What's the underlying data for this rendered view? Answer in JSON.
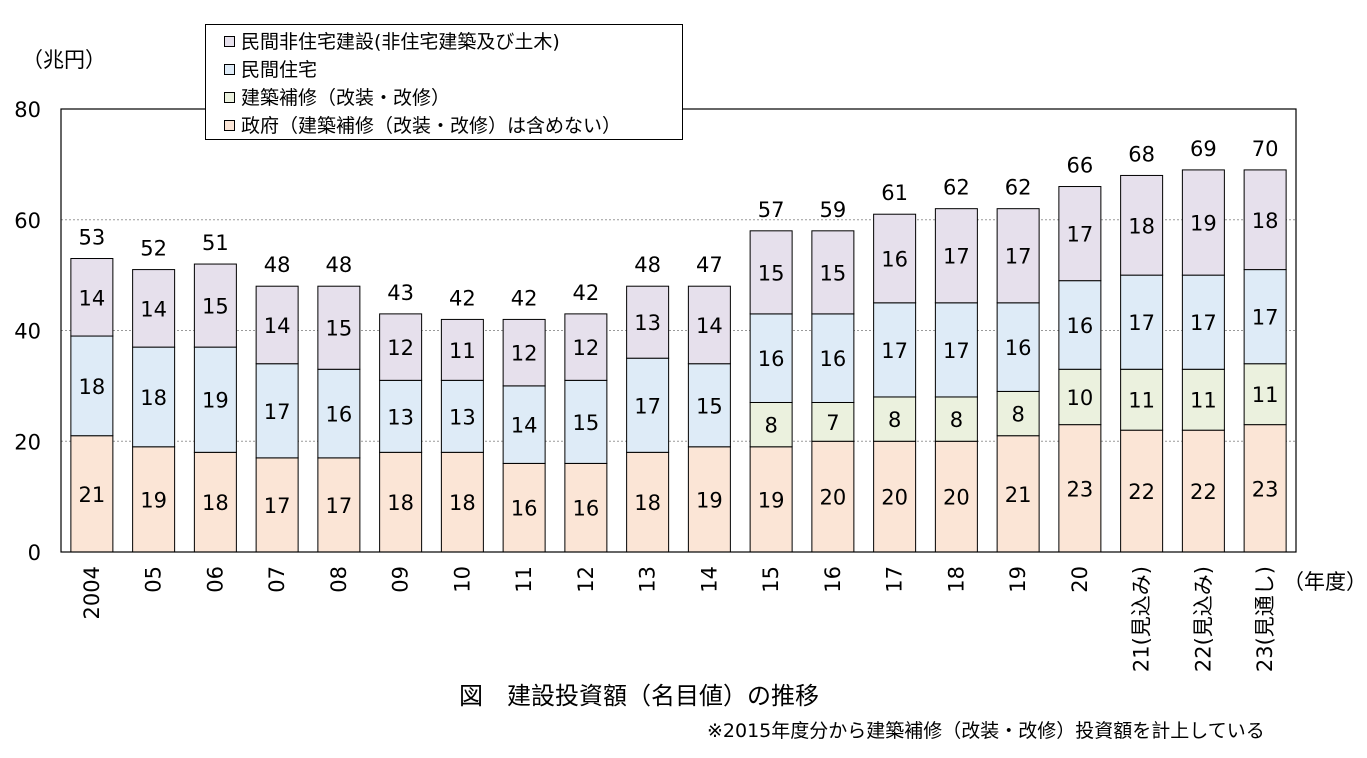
{
  "chart_data": {
    "type": "bar",
    "stacked": true,
    "title": "図　建設投資額（名目値）の推移",
    "note": "※2015年度分から建築補修（改装・改修）投資額を計上している",
    "ylabel": "（兆円）",
    "xlabel": "（年度）",
    "ylim": [
      0,
      80
    ],
    "yticks": [
      "0",
      "20",
      "40",
      "60",
      "80"
    ],
    "grid": true,
    "legend_position": "top-left",
    "categories": [
      "2004",
      "05",
      "06",
      "07",
      "08",
      "09",
      "10",
      "11",
      "12",
      "13",
      "14",
      "15",
      "16",
      "17",
      "18",
      "19",
      "20",
      "21(見込み)",
      "22(見込み)",
      "23(見通し)"
    ],
    "totals": [
      53,
      52,
      51,
      48,
      48,
      43,
      42,
      42,
      42,
      48,
      47,
      57,
      59,
      61,
      62,
      62,
      66,
      68,
      69,
      70
    ],
    "series": [
      {
        "name": "政府（建築補修（改装・改修）は含めない）",
        "color": "#fbe5d6",
        "values": [
          21,
          19,
          18,
          17,
          17,
          18,
          18,
          16,
          16,
          18,
          19,
          19,
          20,
          20,
          20,
          21,
          23,
          22,
          22,
          23
        ]
      },
      {
        "name": "建築補修（改装・改修）",
        "color": "#ebf1de",
        "values": [
          null,
          null,
          null,
          null,
          null,
          null,
          null,
          null,
          null,
          null,
          null,
          8,
          7,
          8,
          8,
          8,
          10,
          11,
          11,
          11
        ]
      },
      {
        "name": "民間住宅",
        "color": "#deebf7",
        "values": [
          18,
          18,
          19,
          17,
          16,
          13,
          13,
          14,
          15,
          17,
          15,
          16,
          16,
          17,
          17,
          16,
          16,
          17,
          17,
          17
        ]
      },
      {
        "name": "民間非住宅建設(非住宅建築及び土木)",
        "color": "#e6e0ec",
        "values": [
          14,
          14,
          15,
          14,
          15,
          12,
          11,
          12,
          12,
          13,
          14,
          15,
          15,
          16,
          17,
          17,
          17,
          18,
          19,
          18
        ]
      }
    ]
  },
  "legend": {
    "items": [
      {
        "label": "民間非住宅建設(非住宅建築及び土木)",
        "color": "#e6e0ec"
      },
      {
        "label": "民間住宅",
        "color": "#deebf7"
      },
      {
        "label": "建築補修（改装・改修）",
        "color": "#ebf1de"
      },
      {
        "label": "政府（建築補修（改装・改修）は含めない）",
        "color": "#fbe5d6"
      }
    ]
  }
}
